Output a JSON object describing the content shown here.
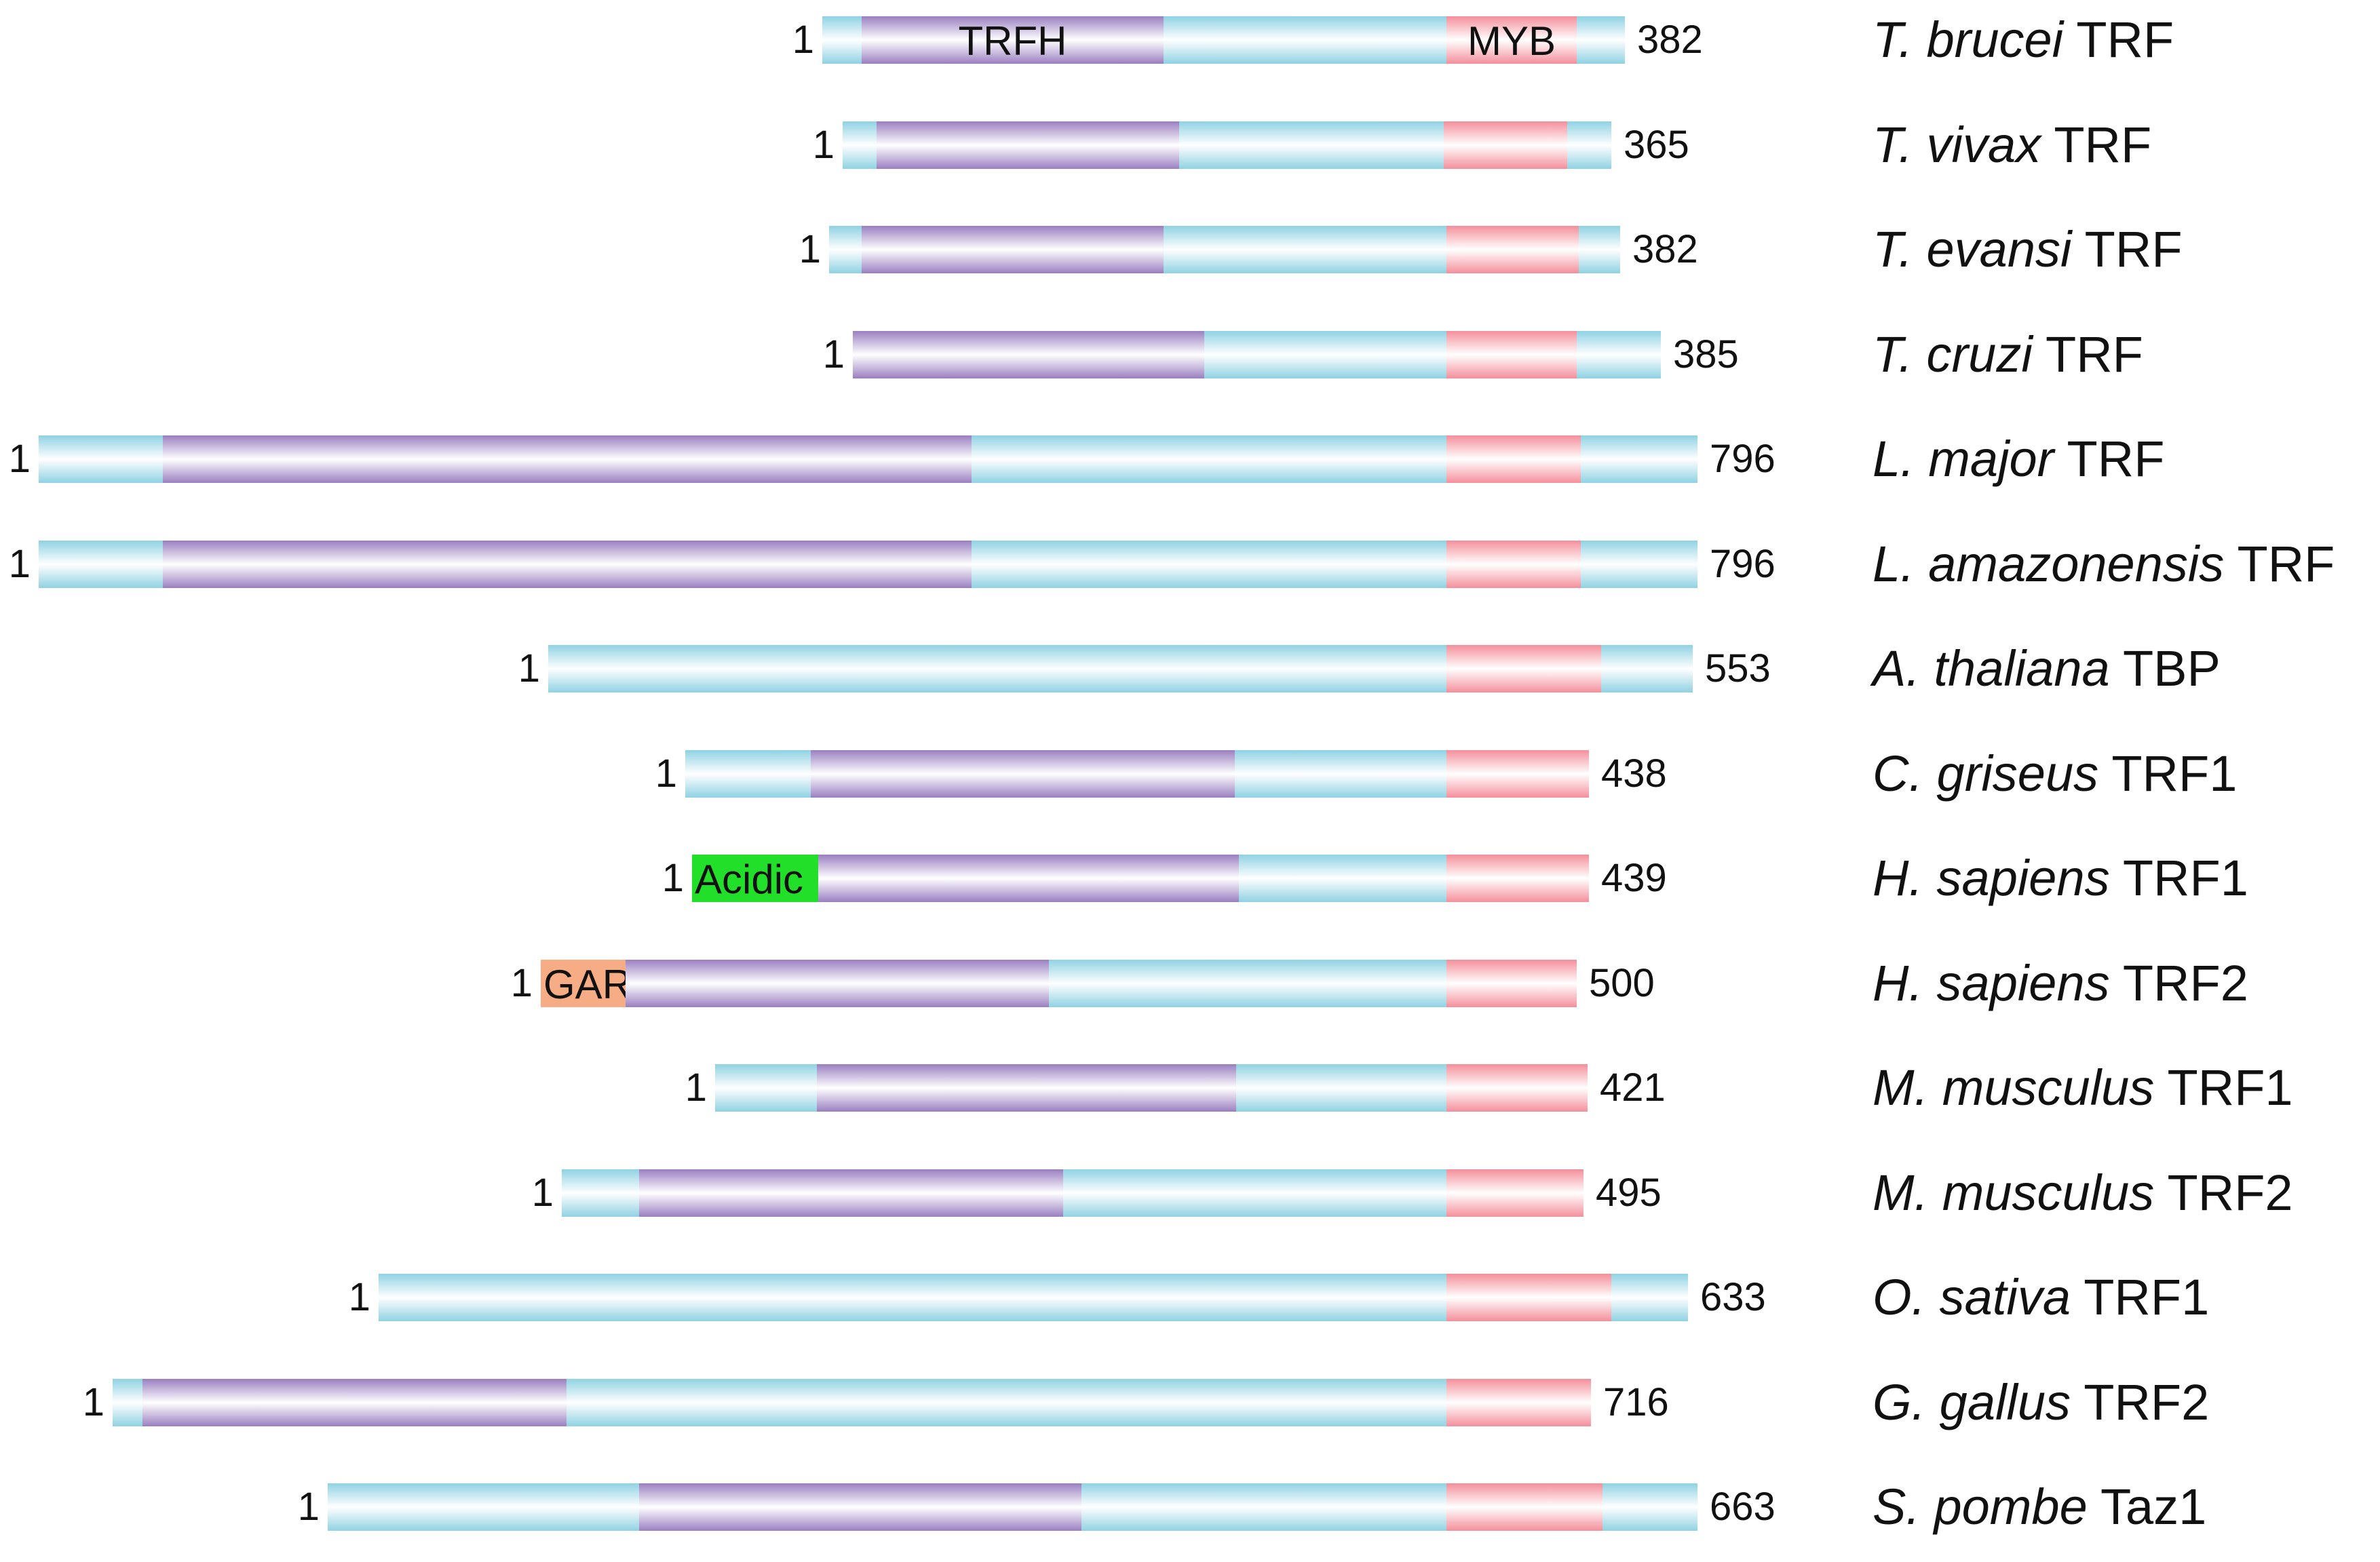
{
  "figure": {
    "title": "",
    "colors": {
      "backbone": "#8fd2e3",
      "trfh": "#9a7fc0",
      "myb": "#f48f9b",
      "acidic": "#22e02a",
      "gar": "#f6ad86"
    },
    "proteins": [
      {
        "species": "T. brucei",
        "protein": "TRF",
        "start": "1",
        "end": "382",
        "span": [
          1212,
          2395
        ],
        "domains": [
          {
            "type": "trfh",
            "range": [
              1270,
              1715
            ],
            "label": "TRFH"
          },
          {
            "type": "myb",
            "range": [
              2132,
              2324
            ],
            "label": "MYB"
          }
        ]
      },
      {
        "species": "T. vivax",
        "protein": "TRF",
        "start": "1",
        "end": "365",
        "span": [
          1242,
          2375
        ],
        "domains": [
          {
            "type": "trfh",
            "range": [
              1292,
              1738
            ]
          },
          {
            "type": "myb",
            "range": [
              2128,
              2310
            ]
          }
        ]
      },
      {
        "species": "T. evansi",
        "protein": "TRF",
        "start": "1",
        "end": "382",
        "span": [
          1222,
          2388
        ],
        "domains": [
          {
            "type": "trfh",
            "range": [
              1270,
              1715
            ]
          },
          {
            "type": "myb",
            "range": [
              2132,
              2327
            ]
          }
        ]
      },
      {
        "species": "T. cruzi",
        "protein": "TRF",
        "start": "1",
        "end": "385",
        "span": [
          1257,
          2448
        ],
        "domains": [
          {
            "type": "trfh",
            "range": [
              1257,
              1775
            ]
          },
          {
            "type": "myb",
            "range": [
              2132,
              2324
            ]
          }
        ]
      },
      {
        "species": "L. major",
        "protein": "TRF",
        "start": "1",
        "end": "796",
        "span": [
          57,
          2502
        ],
        "domains": [
          {
            "type": "trfh",
            "range": [
              240,
              1432
            ]
          },
          {
            "type": "myb",
            "range": [
              2132,
              2330
            ]
          }
        ]
      },
      {
        "species": "L. amazonensis",
        "protein": "TRF",
        "start": "1",
        "end": "796",
        "span": [
          57,
          2502
        ],
        "domains": [
          {
            "type": "trfh",
            "range": [
              240,
              1432
            ]
          },
          {
            "type": "myb",
            "range": [
              2132,
              2330
            ]
          }
        ]
      },
      {
        "species": "A. thaliana",
        "protein": "TBP",
        "start": "1",
        "end": "553",
        "span": [
          808,
          2495
        ],
        "domains": [
          {
            "type": "myb",
            "range": [
              2132,
              2360
            ]
          }
        ]
      },
      {
        "species": "C. griseus",
        "protein": "TRF1",
        "start": "1",
        "end": "438",
        "span": [
          1010,
          2342
        ],
        "domains": [
          {
            "type": "trfh",
            "range": [
              1195,
              1820
            ]
          },
          {
            "type": "myb",
            "range": [
              2132,
              2342
            ]
          }
        ]
      },
      {
        "species": "H. sapiens",
        "protein": "TRF1",
        "start": "1",
        "end": "439",
        "span": [
          1020,
          2342
        ],
        "domains": [
          {
            "type": "acidic",
            "range": [
              1020,
              1206
            ],
            "label": "Acidic"
          },
          {
            "type": "trfh",
            "range": [
              1206,
              1826
            ]
          },
          {
            "type": "myb",
            "range": [
              2132,
              2342
            ]
          }
        ]
      },
      {
        "species": "H. sapiens",
        "protein": "TRF2",
        "start": "1",
        "end": "500",
        "span": [
          797,
          2324
        ],
        "domains": [
          {
            "type": "gar",
            "range": [
              797,
              922
            ],
            "label": "GAR"
          },
          {
            "type": "trfh",
            "range": [
              922,
              1546
            ]
          },
          {
            "type": "myb",
            "range": [
              2132,
              2324
            ]
          }
        ]
      },
      {
        "species": "M. musculus",
        "protein": "TRF1",
        "start": "1",
        "end": "421",
        "span": [
          1054,
          2340
        ],
        "domains": [
          {
            "type": "trfh",
            "range": [
              1204,
              1822
            ]
          },
          {
            "type": "myb",
            "range": [
              2132,
              2340
            ]
          }
        ]
      },
      {
        "species": "M. musculus",
        "protein": "TRF2",
        "start": "1",
        "end": "495",
        "span": [
          828,
          2334
        ],
        "domains": [
          {
            "type": "trfh",
            "range": [
              942,
              1567
            ]
          },
          {
            "type": "myb",
            "range": [
              2132,
              2334
            ]
          }
        ]
      },
      {
        "species": "O. sativa",
        "protein": "TRF1",
        "start": "1",
        "end": "633",
        "span": [
          558,
          2488
        ],
        "domains": [
          {
            "type": "myb",
            "range": [
              2132,
              2375
            ]
          }
        ]
      },
      {
        "species": "G. gallus",
        "protein": "TRF2",
        "start": "1",
        "end": "716",
        "span": [
          166,
          2345
        ],
        "domains": [
          {
            "type": "trfh",
            "range": [
              210,
              835
            ]
          },
          {
            "type": "myb",
            "range": [
              2132,
              2345
            ]
          }
        ]
      },
      {
        "species": "S. pombe",
        "protein": "Taz1",
        "start": "1",
        "end": "663",
        "span": [
          483,
          2502
        ],
        "domains": [
          {
            "type": "trfh",
            "range": [
              942,
              1594
            ]
          },
          {
            "type": "myb",
            "range": [
              2132,
              2362
            ]
          }
        ]
      }
    ]
  }
}
